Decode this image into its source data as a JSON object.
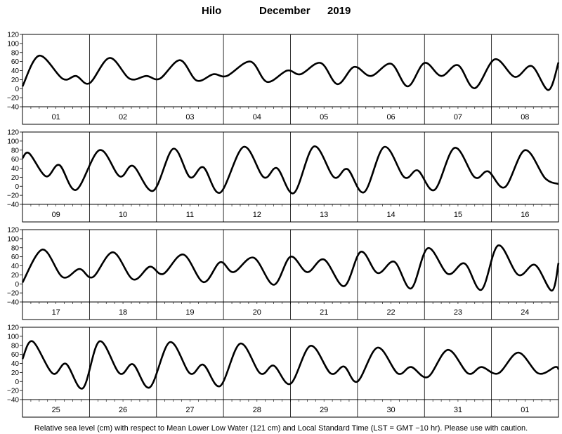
{
  "title": {
    "station": "Hilo",
    "month": "December",
    "year": "2019"
  },
  "footer": "Relative sea level (cm) with respect to Mean Lower Low Water (121 cm) and Local Standard Time (LST = GMT −10 hr). Please use with caution.",
  "chart_data": {
    "type": "line",
    "ylim": [
      -40,
      120
    ],
    "yticks": [
      120,
      100,
      80,
      60,
      40,
      20,
      0,
      -20,
      -40
    ],
    "grid": "vertical day separators",
    "panels": [
      {
        "days": [
          "01",
          "02",
          "03",
          "04",
          "05",
          "06",
          "07",
          "08"
        ],
        "points": [
          [
            0.0,
            5
          ],
          [
            0.25,
            73
          ],
          [
            0.6,
            22
          ],
          [
            0.8,
            28
          ],
          [
            1.0,
            12
          ],
          [
            1.3,
            68
          ],
          [
            1.6,
            22
          ],
          [
            1.85,
            28
          ],
          [
            2.05,
            22
          ],
          [
            2.35,
            63
          ],
          [
            2.6,
            18
          ],
          [
            2.85,
            32
          ],
          [
            3.05,
            28
          ],
          [
            3.4,
            60
          ],
          [
            3.65,
            15
          ],
          [
            3.95,
            40
          ],
          [
            4.15,
            32
          ],
          [
            4.45,
            57
          ],
          [
            4.7,
            10
          ],
          [
            4.95,
            48
          ],
          [
            5.2,
            28
          ],
          [
            5.5,
            55
          ],
          [
            5.75,
            5
          ],
          [
            6.0,
            57
          ],
          [
            6.25,
            28
          ],
          [
            6.5,
            52
          ],
          [
            6.75,
            1
          ],
          [
            7.05,
            65
          ],
          [
            7.35,
            26
          ],
          [
            7.6,
            50
          ],
          [
            7.85,
            -3
          ],
          [
            8.0,
            58
          ]
        ]
      },
      {
        "days": [
          "09",
          "10",
          "11",
          "12",
          "13",
          "14",
          "15",
          "16"
        ],
        "points": [
          [
            0.0,
            62
          ],
          [
            0.1,
            73
          ],
          [
            0.35,
            22
          ],
          [
            0.55,
            47
          ],
          [
            0.8,
            -8
          ],
          [
            1.15,
            80
          ],
          [
            1.45,
            22
          ],
          [
            1.65,
            45
          ],
          [
            1.95,
            -10
          ],
          [
            2.25,
            83
          ],
          [
            2.5,
            20
          ],
          [
            2.7,
            42
          ],
          [
            2.95,
            -14
          ],
          [
            3.3,
            87
          ],
          [
            3.6,
            20
          ],
          [
            3.8,
            40
          ],
          [
            4.05,
            -15
          ],
          [
            4.35,
            88
          ],
          [
            4.65,
            20
          ],
          [
            4.85,
            38
          ],
          [
            5.1,
            -13
          ],
          [
            5.4,
            87
          ],
          [
            5.7,
            20
          ],
          [
            5.9,
            35
          ],
          [
            6.15,
            -8
          ],
          [
            6.45,
            85
          ],
          [
            6.75,
            20
          ],
          [
            6.95,
            33
          ],
          [
            7.2,
            -2
          ],
          [
            7.5,
            80
          ],
          [
            7.8,
            18
          ],
          [
            8.0,
            5
          ]
        ]
      },
      {
        "days": [
          "17",
          "18",
          "19",
          "20",
          "21",
          "22",
          "23",
          "24"
        ],
        "points": [
          [
            0.0,
            3
          ],
          [
            0.3,
            76
          ],
          [
            0.6,
            15
          ],
          [
            0.85,
            33
          ],
          [
            1.05,
            15
          ],
          [
            1.35,
            70
          ],
          [
            1.65,
            10
          ],
          [
            1.9,
            38
          ],
          [
            2.1,
            22
          ],
          [
            2.4,
            65
          ],
          [
            2.7,
            4
          ],
          [
            2.95,
            48
          ],
          [
            3.15,
            26
          ],
          [
            3.45,
            58
          ],
          [
            3.75,
            -2
          ],
          [
            4.0,
            60
          ],
          [
            4.25,
            26
          ],
          [
            4.5,
            54
          ],
          [
            4.8,
            -5
          ],
          [
            5.05,
            71
          ],
          [
            5.3,
            24
          ],
          [
            5.55,
            49
          ],
          [
            5.8,
            -10
          ],
          [
            6.05,
            79
          ],
          [
            6.35,
            22
          ],
          [
            6.6,
            45
          ],
          [
            6.85,
            -13
          ],
          [
            7.1,
            85
          ],
          [
            7.4,
            20
          ],
          [
            7.65,
            42
          ],
          [
            7.9,
            -15
          ],
          [
            8.0,
            46
          ]
        ]
      },
      {
        "days": [
          "25",
          "26",
          "27",
          "28",
          "29",
          "30",
          "31",
          "01"
        ],
        "points": [
          [
            0.0,
            50
          ],
          [
            0.15,
            89
          ],
          [
            0.45,
            18
          ],
          [
            0.65,
            39
          ],
          [
            0.9,
            -15
          ],
          [
            1.15,
            89
          ],
          [
            1.45,
            18
          ],
          [
            1.65,
            38
          ],
          [
            1.9,
            -13
          ],
          [
            2.2,
            87
          ],
          [
            2.5,
            18
          ],
          [
            2.7,
            37
          ],
          [
            2.95,
            -10
          ],
          [
            3.25,
            84
          ],
          [
            3.55,
            18
          ],
          [
            3.75,
            35
          ],
          [
            4.0,
            -5
          ],
          [
            4.3,
            79
          ],
          [
            4.6,
            18
          ],
          [
            4.8,
            33
          ],
          [
            5.0,
            0
          ],
          [
            5.3,
            75
          ],
          [
            5.6,
            18
          ],
          [
            5.8,
            32
          ],
          [
            6.05,
            10
          ],
          [
            6.35,
            70
          ],
          [
            6.65,
            18
          ],
          [
            6.85,
            32
          ],
          [
            7.1,
            18
          ],
          [
            7.4,
            64
          ],
          [
            7.7,
            18
          ],
          [
            7.95,
            32
          ],
          [
            8.0,
            27
          ]
        ]
      }
    ]
  }
}
